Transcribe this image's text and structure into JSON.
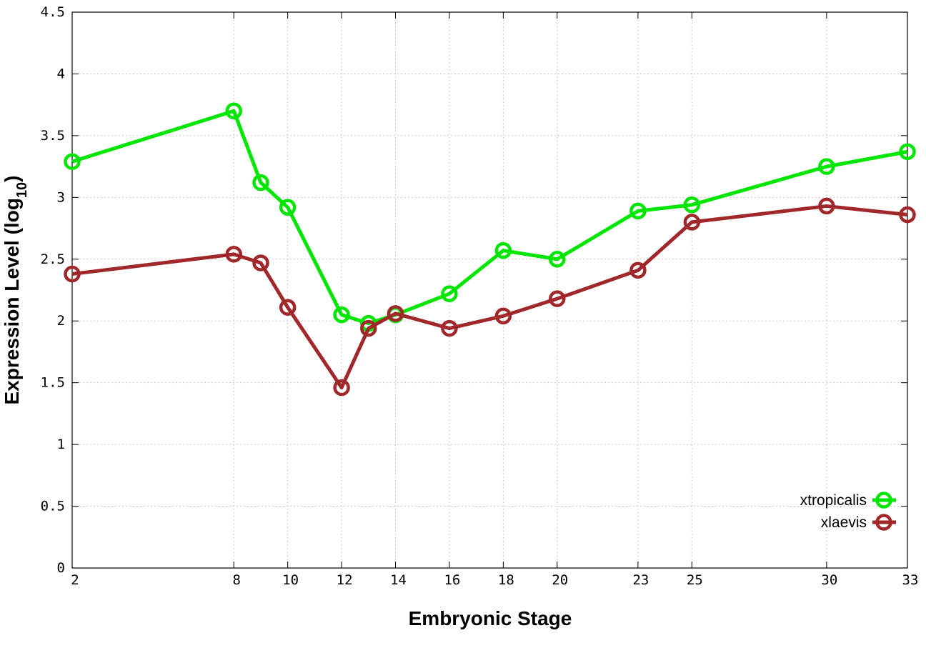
{
  "chart_data": {
    "type": "line",
    "xlabel": "Embryonic Stage",
    "ylabel_main": "Expression Level (log",
    "ylabel_sub": "10",
    "ylabel_close": ")",
    "xlim": [
      2,
      33
    ],
    "ylim": [
      0,
      4.5
    ],
    "x": [
      2,
      8,
      9,
      10,
      12,
      13,
      14,
      16,
      18,
      20,
      23,
      25,
      30,
      33
    ],
    "x_ticks": [
      "2",
      "8",
      "10",
      "12",
      "14",
      "16",
      "18",
      "20",
      "23",
      "25",
      "30",
      "33"
    ],
    "y_ticks": [
      "0",
      "0.5",
      "1",
      "1.5",
      "2",
      "2.5",
      "3",
      "3.5",
      "4",
      "4.5"
    ],
    "grid": true,
    "legend_position": "bottom-right",
    "series": [
      {
        "name": "xtropicalis",
        "color": "#00e600",
        "values": [
          3.29,
          3.7,
          3.12,
          2.92,
          2.05,
          1.98,
          2.05,
          2.22,
          2.57,
          2.5,
          2.89,
          2.94,
          3.25,
          3.37
        ]
      },
      {
        "name": "xlaevis",
        "color": "#a0282a",
        "values": [
          2.38,
          2.54,
          2.47,
          2.11,
          1.46,
          1.94,
          2.06,
          1.94,
          2.04,
          2.18,
          2.41,
          2.8,
          2.93,
          2.86
        ]
      }
    ]
  }
}
